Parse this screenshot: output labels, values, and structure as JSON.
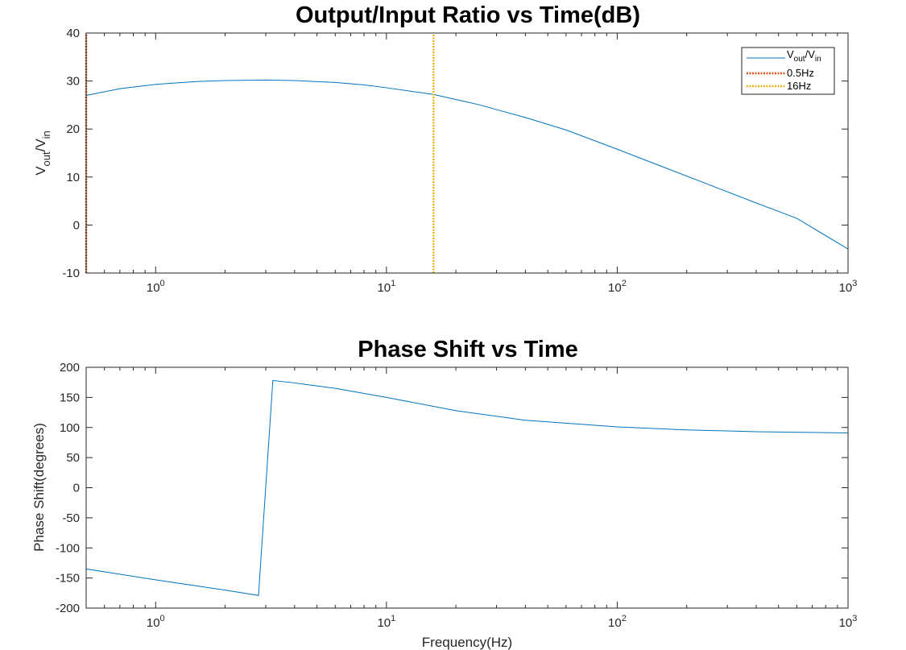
{
  "chart_data": [
    {
      "type": "line",
      "title": "Output/Input Ratio vs Time(dB)",
      "xlabel": "",
      "ylabel": "V_out/V_in",
      "xscale": "log",
      "xlim": [
        0.5,
        1000
      ],
      "ylim": [
        -10,
        40
      ],
      "yticks": [
        -10,
        0,
        10,
        20,
        30,
        40
      ],
      "xtick_decades": [
        0,
        1,
        2,
        3
      ],
      "grid": false,
      "legend_position": "top-right",
      "series": [
        {
          "name": "V_out/V_in",
          "style": "solid",
          "color": "#0072bd",
          "x": [
            0.5,
            0.7,
            1,
            1.5,
            2,
            3,
            4,
            6,
            8,
            10,
            16,
            25,
            40,
            60,
            100,
            160,
            250,
            400,
            600,
            1000
          ],
          "y": [
            27.0,
            28.4,
            29.3,
            29.9,
            30.1,
            30.2,
            30.1,
            29.7,
            29.2,
            28.6,
            27.2,
            25.1,
            22.4,
            19.8,
            15.8,
            12.0,
            8.4,
            4.6,
            1.4,
            -5.0
          ]
        },
        {
          "name": "0.5Hz",
          "style": "dotted-vertical",
          "color": "#d95319",
          "x": [
            0.5,
            0.5
          ],
          "y": [
            -10,
            40
          ]
        },
        {
          "name": "16Hz",
          "style": "dotted-vertical",
          "color": "#edb120",
          "x": [
            16,
            16
          ],
          "y": [
            -10,
            40
          ]
        }
      ]
    },
    {
      "type": "line",
      "title": "Phase Shift vs Time",
      "xlabel": "Frequency(Hz)",
      "ylabel": "Phase Shift(degrees)",
      "xscale": "log",
      "xlim": [
        0.5,
        1000
      ],
      "ylim": [
        -200,
        200
      ],
      "yticks": [
        -200,
        -150,
        -100,
        -50,
        0,
        50,
        100,
        150,
        200
      ],
      "xtick_decades": [
        0,
        1,
        2,
        3
      ],
      "grid": false,
      "series": [
        {
          "style": "solid",
          "color": "#0072bd",
          "x": [
            0.5,
            1,
            1.5,
            2,
            2.79,
            3.22,
            4,
            6,
            10,
            20,
            40,
            100,
            200,
            400,
            1000
          ],
          "y": [
            -135,
            -153,
            -163,
            -170,
            -179,
            178,
            174,
            165,
            150,
            128,
            112,
            101,
            96,
            93,
            91
          ]
        }
      ]
    }
  ]
}
